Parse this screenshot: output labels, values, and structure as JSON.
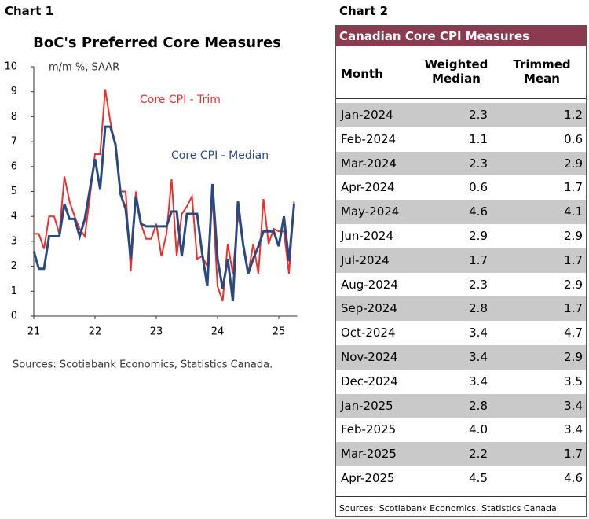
{
  "chart_data": {
    "type": "line",
    "label": "Chart 1",
    "title": "BoC's Preferred Core Measures",
    "subtitle": "m/m %, SAAR",
    "categories": [
      "21",
      null,
      null,
      null,
      null,
      null,
      null,
      null,
      null,
      null,
      null,
      null,
      "22",
      null,
      null,
      null,
      null,
      null,
      null,
      null,
      null,
      null,
      null,
      null,
      "23",
      null,
      null,
      null,
      null,
      null,
      null,
      null,
      null,
      null,
      null,
      null,
      "24",
      null,
      null,
      null,
      null,
      null,
      null,
      null,
      null,
      null,
      null,
      null,
      "25",
      null,
      null,
      null
    ],
    "series": [
      {
        "name": "Core CPI - Trim",
        "color": "#e8312f",
        "values": [
          3.3,
          3.3,
          2.7,
          4.0,
          4.0,
          3.3,
          5.6,
          4.6,
          4.0,
          3.5,
          3.2,
          4.8,
          6.5,
          6.5,
          9.1,
          7.8,
          6.8,
          5.0,
          5.0,
          1.8,
          5.0,
          3.7,
          3.1,
          3.1,
          3.7,
          2.4,
          3.3,
          5.5,
          2.4,
          4.1,
          4.4,
          4.8,
          2.3,
          2.4,
          2.0,
          4.8,
          1.2,
          0.6,
          2.9,
          1.7,
          4.1,
          2.9,
          1.7,
          2.9,
          1.7,
          4.7,
          2.9,
          3.5,
          3.4,
          3.4,
          1.7,
          4.6
        ]
      },
      {
        "name": "Core CPI - Median",
        "color": "#2a4a7f",
        "values": [
          2.6,
          1.9,
          1.9,
          3.2,
          3.2,
          3.2,
          4.5,
          3.9,
          3.9,
          3.2,
          3.9,
          5.1,
          6.3,
          5.1,
          7.6,
          7.6,
          6.9,
          4.9,
          4.3,
          2.3,
          4.8,
          3.7,
          3.6,
          3.6,
          3.6,
          3.6,
          3.6,
          4.2,
          4.2,
          2.4,
          4.1,
          4.1,
          4.1,
          2.5,
          1.2,
          5.3,
          2.3,
          1.1,
          2.3,
          0.6,
          4.6,
          2.9,
          1.7,
          2.3,
          2.8,
          3.4,
          3.4,
          3.4,
          2.8,
          4.0,
          2.2,
          4.5
        ]
      }
    ],
    "ylim": [
      0,
      10
    ],
    "yticks": [
      0,
      1,
      2,
      3,
      4,
      5,
      6,
      7,
      8,
      9,
      10
    ],
    "source": "Sources: Scotiabank Economics, Statistics Canada."
  },
  "table": {
    "label": "Chart 2",
    "title": "Canadian Core CPI Measures",
    "header": [
      "Month",
      "Weighted Median",
      "Trimmed Mean"
    ],
    "rows": [
      [
        "Jan-2024",
        "2.3",
        "1.2"
      ],
      [
        "Feb-2024",
        "1.1",
        "0.6"
      ],
      [
        "Mar-2024",
        "2.3",
        "2.9"
      ],
      [
        "Apr-2024",
        "0.6",
        "1.7"
      ],
      [
        "May-2024",
        "4.6",
        "4.1"
      ],
      [
        "Jun-2024",
        "2.9",
        "2.9"
      ],
      [
        "Jul-2024",
        "1.7",
        "1.7"
      ],
      [
        "Aug-2024",
        "2.3",
        "2.9"
      ],
      [
        "Sep-2024",
        "2.8",
        "1.7"
      ],
      [
        "Oct-2024",
        "3.4",
        "4.7"
      ],
      [
        "Nov-2024",
        "3.4",
        "2.9"
      ],
      [
        "Dec-2024",
        "3.4",
        "3.5"
      ],
      [
        "Jan-2025",
        "2.8",
        "3.4"
      ],
      [
        "Feb-2025",
        "4.0",
        "3.4"
      ],
      [
        "Mar-2025",
        "2.2",
        "1.7"
      ],
      [
        "Apr-2025",
        "4.5",
        "4.6"
      ]
    ],
    "source": "Sources: Scotiabank Economics, Statistics Canada."
  }
}
